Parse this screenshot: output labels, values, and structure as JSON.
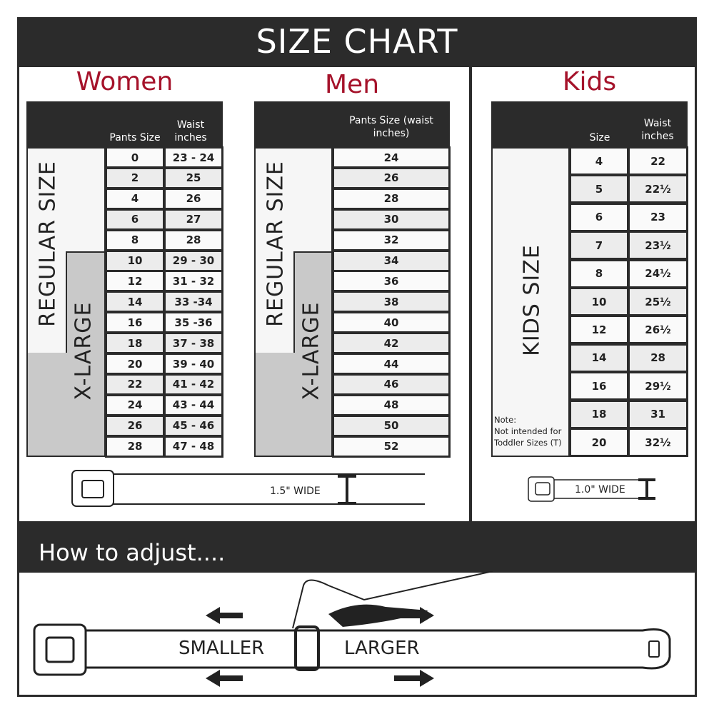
{
  "title": "SIZE CHART",
  "women": {
    "heading": "Women",
    "col1": "Pants Size",
    "col2": "Waist inches",
    "regular_label": "REGULAR SIZE",
    "xlarge_label": "X-LARGE",
    "rows": [
      [
        "0",
        "23 - 24"
      ],
      [
        "2",
        "25"
      ],
      [
        "4",
        "26"
      ],
      [
        "6",
        "27"
      ],
      [
        "8",
        "28"
      ],
      [
        "10",
        "29 - 30"
      ],
      [
        "12",
        "31 - 32"
      ],
      [
        "14",
        "33 -34"
      ],
      [
        "16",
        "35 -36"
      ],
      [
        "18",
        "37 - 38"
      ],
      [
        "20",
        "39 - 40"
      ],
      [
        "22",
        "41 - 42"
      ],
      [
        "24",
        "43 - 44"
      ],
      [
        "26",
        "45 - 46"
      ],
      [
        "28",
        "47 - 48"
      ]
    ]
  },
  "men": {
    "heading": "Men",
    "col1": "Pants Size (waist inches)",
    "regular_label": "REGULAR SIZE",
    "xlarge_label": "X-LARGE",
    "rows": [
      "24",
      "26",
      "28",
      "30",
      "32",
      "34",
      "36",
      "38",
      "40",
      "42",
      "44",
      "46",
      "48",
      "50",
      "52"
    ]
  },
  "kids": {
    "heading": "Kids",
    "col1": "Size",
    "col2": "Waist inches",
    "label": "KIDS SIZE",
    "note": "Note:",
    "note_text": "Not intended for Toddler Sizes (T)",
    "rows": [
      [
        "4",
        "22"
      ],
      [
        "5",
        "22½"
      ],
      [
        "6",
        "23"
      ],
      [
        "7",
        "23½"
      ],
      [
        "8",
        "24½"
      ],
      [
        "10",
        "25½"
      ],
      [
        "12",
        "26½"
      ],
      [
        "14",
        "28"
      ],
      [
        "16",
        "29½"
      ],
      [
        "18",
        "31"
      ],
      [
        "20",
        "32½"
      ]
    ]
  },
  "belt_adult": {
    "width_label": "1.5\" WIDE"
  },
  "belt_kids": {
    "width_label": "1.0\" WIDE"
  },
  "adjust": {
    "heading": "How to adjust....",
    "smaller": "SMALLER",
    "larger": "LARGER"
  },
  "colors": {
    "accent": "#a5122a",
    "dark": "#2b2b2b",
    "xlarge_fill": "#c9c9c9"
  }
}
